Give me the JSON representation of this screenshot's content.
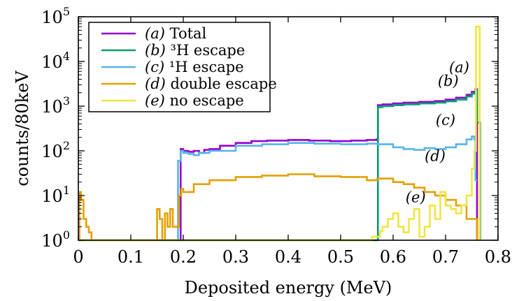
{
  "chart_data": {
    "type": "line",
    "step": true,
    "xlabel": "Deposited energy (MeV)",
    "ylabel": "counts/80keV",
    "xlim": [
      0,
      0.8
    ],
    "ylim": [
      1,
      100000
    ],
    "yscale": "log",
    "x_ticks": [
      "0",
      "0.1",
      "0.2",
      "0.3",
      "0.4",
      "0.5",
      "0.6",
      "0.7",
      "0.8"
    ],
    "y_ticks": [
      {
        "base": "10",
        "exp": "0"
      },
      {
        "base": "10",
        "exp": "1"
      },
      {
        "base": "10",
        "exp": "2"
      },
      {
        "base": "10",
        "exp": "3"
      },
      {
        "base": "10",
        "exp": "4"
      },
      {
        "base": "10",
        "exp": "5"
      }
    ],
    "grid": false,
    "legend_position": "top-left",
    "legend": [
      {
        "tag": "(a)",
        "label": "Total"
      },
      {
        "tag": "(b)",
        "label": "³H escape"
      },
      {
        "tag": "(c)",
        "label": "¹H escape"
      },
      {
        "tag": "(d)",
        "label": "double escape"
      },
      {
        "tag": "(e)",
        "label": "no escape"
      }
    ],
    "annotations": [
      "(a)",
      "(b)",
      "(c)",
      "(d)",
      "(e)"
    ],
    "series": [
      {
        "name": "(a) Total",
        "color": "#9400d3",
        "x": [
          0.188,
          0.195,
          0.2,
          0.21,
          0.22,
          0.23,
          0.24,
          0.25,
          0.27,
          0.3,
          0.33,
          0.36,
          0.4,
          0.44,
          0.48,
          0.52,
          0.55,
          0.568,
          0.571,
          0.58,
          0.6,
          0.62,
          0.65,
          0.68,
          0.7,
          0.72,
          0.74,
          0.75,
          0.757,
          0.76
        ],
        "y": [
          1,
          110,
          100,
          95,
          100,
          90,
          105,
          110,
          130,
          150,
          165,
          170,
          175,
          170,
          165,
          170,
          175,
          180,
          1050,
          1100,
          1150,
          1200,
          1250,
          1300,
          1400,
          1550,
          1800,
          2100,
          2400,
          1
        ]
      },
      {
        "name": "(b) ³H escape",
        "color": "#009e73",
        "x": [
          0.0,
          0.568,
          0.57,
          0.571,
          0.58,
          0.6,
          0.62,
          0.65,
          0.68,
          0.7,
          0.72,
          0.74,
          0.75,
          0.757,
          0.76,
          0.765,
          0.766
        ],
        "y": [
          1,
          1,
          1,
          950,
          1000,
          1050,
          1100,
          1150,
          1200,
          1280,
          1400,
          1650,
          1900,
          2200,
          430,
          430,
          1
        ]
      },
      {
        "name": "(c) ¹H escape",
        "color": "#56b4e9",
        "x": [
          0.186,
          0.19,
          0.195,
          0.2,
          0.21,
          0.22,
          0.23,
          0.25,
          0.3,
          0.35,
          0.4,
          0.45,
          0.5,
          0.55,
          0.57,
          0.6,
          0.62,
          0.64,
          0.66,
          0.68,
          0.7,
          0.72,
          0.74,
          0.75,
          0.755,
          0.757,
          0.76
        ],
        "y": [
          1,
          60,
          100,
          90,
          85,
          80,
          90,
          100,
          130,
          140,
          150,
          145,
          140,
          145,
          140,
          120,
          110,
          105,
          115,
          110,
          120,
          140,
          180,
          210,
          180,
          22,
          22
        ]
      },
      {
        "name": "(d) double escape",
        "color": "#e69f00",
        "x": [
          0.0,
          0.002,
          0.005,
          0.01,
          0.015,
          0.02,
          0.025,
          0.145,
          0.15,
          0.155,
          0.16,
          0.165,
          0.17,
          0.175,
          0.18,
          0.188,
          0.192,
          0.196,
          0.2,
          0.22,
          0.25,
          0.3,
          0.35,
          0.4,
          0.45,
          0.5,
          0.55,
          0.57,
          0.6,
          0.62,
          0.64,
          0.66,
          0.68,
          0.7,
          0.72,
          0.74,
          0.76
        ],
        "y": [
          1,
          12,
          8,
          3,
          2,
          1.5,
          1,
          1,
          5,
          3,
          1,
          4,
          2,
          5,
          2,
          2,
          10,
          14,
          12,
          18,
          22,
          26,
          28,
          30,
          27,
          26,
          22,
          24,
          20,
          18,
          15,
          12,
          10,
          8,
          6,
          3,
          1
        ]
      },
      {
        "name": "(e) no escape",
        "color": "#f0e442",
        "x": [
          0.0,
          0.55,
          0.56,
          0.575,
          0.58,
          0.59,
          0.6,
          0.61,
          0.62,
          0.63,
          0.64,
          0.65,
          0.66,
          0.67,
          0.68,
          0.69,
          0.7,
          0.71,
          0.72,
          0.73,
          0.74,
          0.75,
          0.755,
          0.758,
          0.762,
          0.765,
          0.768
        ],
        "y": [
          1,
          1,
          1.2,
          1.6,
          2,
          3,
          4,
          2,
          1.5,
          3,
          5,
          1.2,
          2,
          6,
          3,
          12,
          6,
          5,
          4,
          6,
          10,
          40,
          100,
          60000,
          60000,
          1,
          1
        ]
      }
    ]
  }
}
